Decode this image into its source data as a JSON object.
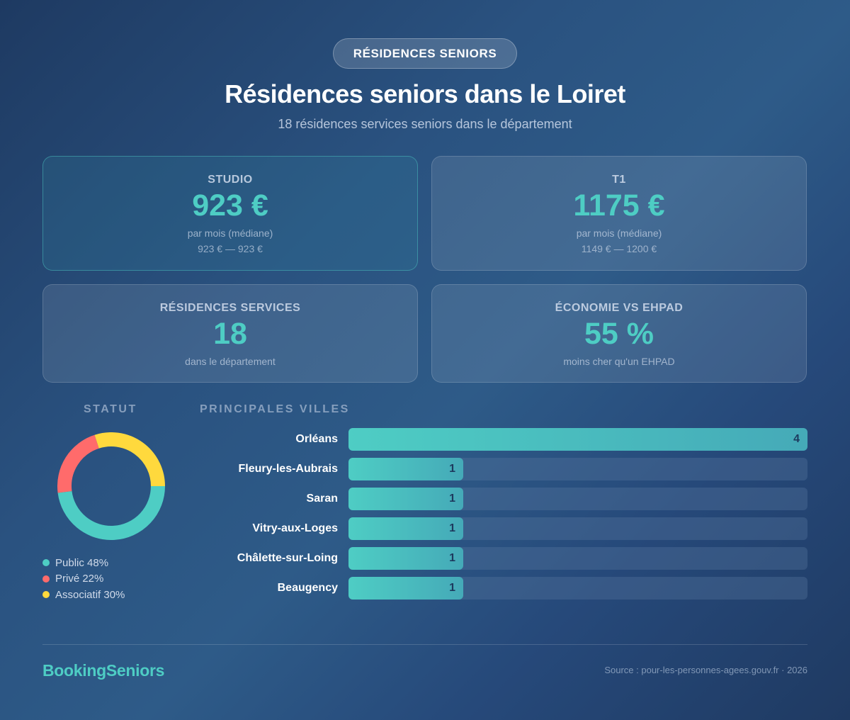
{
  "header": {
    "badge": "RÉSIDENCES SENIORS",
    "title": "Résidences seniors dans le Loiret",
    "subtitle": "18 résidences services seniors dans le département"
  },
  "cards": [
    {
      "label": "STUDIO",
      "value": "923 €",
      "sub": "par mois (médiane)",
      "range": "923 € — 923 €",
      "highlight": true
    },
    {
      "label": "T1",
      "value": "1175 €",
      "sub": "par mois (médiane)",
      "range": "1149 € — 1200 €",
      "highlight": false
    },
    {
      "label": "RÉSIDENCES SERVICES",
      "value": "18",
      "sub": "dans le département"
    },
    {
      "label": "ÉCONOMIE VS EHPAD",
      "value": "55 %",
      "sub": "moins cher qu'un EHPAD"
    }
  ],
  "status_section": {
    "title": "STATUT",
    "legend": [
      {
        "label": "Public 48%",
        "color": "#4ecdc4"
      },
      {
        "label": "Privé 22%",
        "color": "#ff6b6b"
      },
      {
        "label": "Associatif 30%",
        "color": "#ffd93d"
      }
    ]
  },
  "cities_section": {
    "title": "PRINCIPALES VILLES"
  },
  "colors": {
    "accent": "#4ecdc4",
    "public": "#4ecdc4",
    "prive": "#ff6b6b",
    "associatif": "#ffd93d"
  },
  "footer": {
    "brand": "BookingSeniors",
    "source": "Source : pour-les-personnes-agees.gouv.fr · 2026"
  },
  "chart_data": [
    {
      "type": "pie",
      "title": "STATUT",
      "categories": [
        "Public",
        "Privé",
        "Associatif"
      ],
      "values": [
        48,
        22,
        30
      ],
      "unit": "%",
      "colors": [
        "#4ecdc4",
        "#ff6b6b",
        "#ffd93d"
      ],
      "donut": true,
      "legend_position": "bottom"
    },
    {
      "type": "bar",
      "orientation": "horizontal",
      "title": "PRINCIPALES VILLES",
      "categories": [
        "Orléans",
        "Fleury-les-Aubrais",
        "Saran",
        "Vitry-aux-Loges",
        "Châlette-sur-Loing",
        "Beaugency"
      ],
      "values": [
        4,
        1,
        1,
        1,
        1,
        1
      ],
      "xlim": [
        0,
        4
      ],
      "xlabel": "",
      "ylabel": "",
      "data_labels": true
    }
  ]
}
